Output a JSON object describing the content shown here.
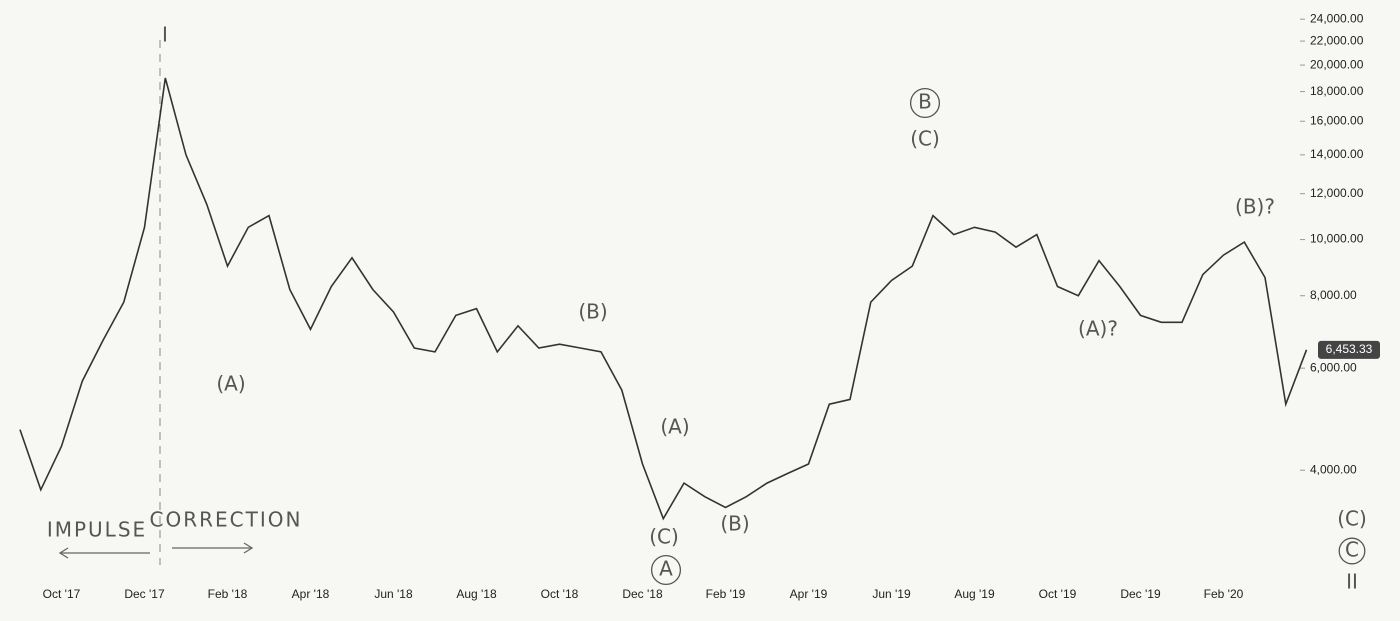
{
  "chart_data": {
    "type": "line",
    "categories": [
      null,
      null,
      "Oct '17",
      null,
      null,
      null,
      "Dec '17",
      null,
      null,
      null,
      "Feb '18",
      null,
      null,
      null,
      "Apr '18",
      null,
      null,
      null,
      "Jun '18",
      null,
      null,
      null,
      "Aug '18",
      null,
      null,
      null,
      "Oct '18",
      null,
      null,
      null,
      "Dec '18",
      null,
      null,
      null,
      "Feb '19",
      null,
      null,
      null,
      "Apr '19",
      null,
      null,
      null,
      "Jun '19",
      null,
      null,
      null,
      "Aug '19",
      null,
      null,
      null,
      "Oct '19",
      null,
      null,
      null,
      "Dec '19",
      null,
      null,
      null,
      "Feb '20",
      null,
      null,
      null,
      null
    ],
    "values": [
      4700,
      3700,
      4400,
      5700,
      6700,
      7800,
      10500,
      19000,
      14000,
      11500,
      9000,
      10500,
      11000,
      8200,
      7000,
      8300,
      9300,
      8200,
      7500,
      6500,
      6400,
      7400,
      7600,
      6400,
      7100,
      6500,
      6600,
      6500,
      6400,
      5500,
      4100,
      3300,
      3800,
      3600,
      3450,
      3600,
      3800,
      3950,
      4100,
      5200,
      5300,
      7800,
      8500,
      9000,
      11000,
      10200,
      10500,
      10300,
      9700,
      10200,
      8300,
      8000,
      9200,
      8300,
      7400,
      7200,
      7200,
      8700,
      9400,
      9900,
      8600,
      5200,
      6453.33
    ],
    "color": "#333333",
    "log_scale": true,
    "ylim": [
      2800,
      24500
    ],
    "yticks": [
      {
        "value": 4000,
        "label": "4,000.00"
      },
      {
        "value": 6000,
        "label": "6,000.00"
      },
      {
        "value": 8000,
        "label": "8,000.00"
      },
      {
        "value": 10000,
        "label": "10,000.00"
      },
      {
        "value": 12000,
        "label": "12,000.00"
      },
      {
        "value": 14000,
        "label": "14,000.00"
      },
      {
        "value": 16000,
        "label": "16,000.00"
      },
      {
        "value": 18000,
        "label": "18,000.00"
      },
      {
        "value": 20000,
        "label": "20,000.00"
      },
      {
        "value": 22000,
        "label": "22,000.00"
      },
      {
        "value": 24000,
        "label": "24,000.00"
      }
    ],
    "price_label": {
      "value": 6453.33,
      "label": "6,453.33"
    },
    "annotations": [
      "I",
      "(A)",
      "IMPULSE",
      "CORRECTION",
      "(B)",
      "(A)",
      "(C)",
      "A",
      "(B)",
      "B",
      "(C)",
      "(A)?",
      "(B)?",
      "(C)",
      "C",
      "II"
    ]
  }
}
